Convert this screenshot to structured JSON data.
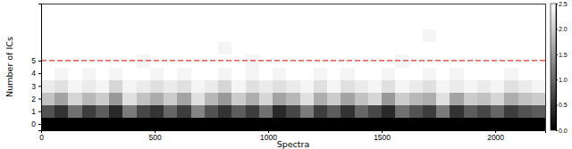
{
  "chart_data": {
    "type": "heatmap",
    "xlabel": "Spectra",
    "ylabel": "Number of ICs",
    "x": [
      0,
      60,
      120,
      180,
      240,
      300,
      360,
      420,
      480,
      540,
      600,
      660,
      720,
      780,
      840,
      900,
      960,
      1020,
      1080,
      1140,
      1200,
      1260,
      1320,
      1380,
      1440,
      1500,
      1560,
      1620,
      1680,
      1740,
      1800,
      1860,
      1920,
      1980,
      2040,
      2100,
      2160
    ],
    "y": [
      0,
      1,
      2,
      3,
      4,
      5,
      6,
      7,
      8,
      9
    ],
    "xlim": [
      0,
      2220
    ],
    "ylim": [
      -0.5,
      9.5
    ],
    "xticks": [
      0,
      500,
      1000,
      1500,
      2000
    ],
    "yticks": [
      0,
      1,
      2,
      3,
      4,
      5
    ],
    "cells": [
      [
        0,
        0,
        0,
        0,
        0,
        0,
        0,
        0,
        0,
        0,
        0,
        0,
        0,
        0,
        0,
        0,
        0,
        0,
        0,
        0,
        0,
        0,
        0,
        0,
        0,
        0,
        0,
        0,
        0,
        0,
        0,
        0,
        0,
        0,
        0,
        0,
        0
      ],
      [
        0.8,
        0.5,
        1.1,
        0.6,
        0.9,
        0.4,
        1.2,
        0.7,
        0.5,
        1.0,
        0.6,
        1.3,
        0.8,
        0.5,
        0.9,
        0.6,
        1.1,
        0.4,
        0.7,
        1.2,
        0.6,
        0.9,
        0.5,
        1.0,
        0.7,
        0.4,
        1.1,
        0.8,
        0.6,
        1.2,
        0.5,
        0.9,
        0.7,
        1.0,
        0.6,
        0.8,
        0.9
      ],
      [
        1.9,
        1.6,
        2.1,
        1.8,
        2.0,
        1.5,
        2.2,
        1.9,
        1.7,
        2.0,
        1.6,
        2.2,
        1.8,
        1.5,
        2.0,
        1.7,
        2.1,
        1.6,
        1.8,
        2.2,
        1.7,
        2.0,
        1.6,
        1.9,
        2.1,
        1.5,
        2.0,
        1.8,
        1.7,
        2.2,
        1.6,
        2.0,
        1.9,
        2.1,
        1.7,
        1.9,
        2.0
      ],
      [
        2.3,
        2.2,
        2.4,
        2.3,
        2.4,
        2.1,
        2.4,
        2.3,
        2.2,
        2.3,
        2.2,
        2.4,
        2.3,
        2.1,
        2.4,
        2.2,
        2.3,
        2.2,
        2.3,
        2.4,
        2.2,
        2.4,
        2.2,
        2.3,
        2.4,
        2.2,
        2.4,
        2.3,
        2.2,
        2.4,
        2.3,
        2.4,
        2.3,
        2.4,
        2.2,
        2.3,
        2.4
      ],
      [
        2.5,
        2.4,
        2.5,
        2.4,
        2.5,
        2.4,
        2.5,
        2.5,
        2.4,
        2.5,
        2.4,
        2.5,
        2.5,
        2.4,
        2.5,
        2.4,
        2.5,
        2.4,
        2.5,
        2.5,
        2.4,
        2.5,
        2.4,
        2.5,
        2.5,
        2.4,
        2.5,
        2.5,
        2.4,
        2.5,
        2.4,
        2.5,
        2.5,
        2.5,
        2.4,
        2.5,
        2.5
      ],
      [
        2.5,
        2.5,
        2.5,
        2.5,
        2.5,
        2.5,
        2.5,
        2.4,
        2.5,
        2.5,
        2.5,
        2.5,
        2.5,
        2.5,
        2.5,
        2.4,
        2.5,
        2.5,
        2.5,
        2.5,
        2.5,
        2.5,
        2.5,
        2.5,
        2.5,
        2.5,
        2.4,
        2.5,
        2.5,
        2.5,
        2.5,
        2.5,
        2.5,
        2.5,
        2.5,
        2.5,
        2.5
      ],
      [
        2.5,
        2.5,
        2.5,
        2.5,
        2.5,
        2.5,
        2.5,
        2.5,
        2.5,
        2.5,
        2.5,
        2.5,
        2.5,
        2.4,
        2.5,
        2.5,
        2.5,
        2.5,
        2.5,
        2.5,
        2.5,
        2.5,
        2.5,
        2.5,
        2.5,
        2.5,
        2.5,
        2.5,
        2.5,
        2.5,
        2.5,
        2.5,
        2.5,
        2.5,
        2.5,
        2.5,
        2.5
      ],
      [
        2.5,
        2.5,
        2.5,
        2.5,
        2.5,
        2.5,
        2.5,
        2.5,
        2.5,
        2.5,
        2.5,
        2.5,
        2.5,
        2.5,
        2.5,
        2.5,
        2.5,
        2.5,
        2.5,
        2.5,
        2.5,
        2.5,
        2.5,
        2.5,
        2.5,
        2.5,
        2.5,
        2.5,
        2.4,
        2.5,
        2.5,
        2.5,
        2.5,
        2.5,
        2.5,
        2.5,
        2.5
      ],
      [
        2.5,
        2.5,
        2.5,
        2.5,
        2.5,
        2.5,
        2.5,
        2.5,
        2.5,
        2.5,
        2.5,
        2.5,
        2.5,
        2.5,
        2.5,
        2.5,
        2.5,
        2.5,
        2.5,
        2.5,
        2.5,
        2.5,
        2.5,
        2.5,
        2.5,
        2.5,
        2.5,
        2.5,
        2.5,
        2.5,
        2.5,
        2.5,
        2.5,
        2.5,
        2.5,
        2.5,
        2.5
      ],
      [
        2.5,
        2.5,
        2.5,
        2.5,
        2.5,
        2.5,
        2.5,
        2.5,
        2.5,
        2.5,
        2.5,
        2.5,
        2.5,
        2.5,
        2.5,
        2.5,
        2.5,
        2.5,
        2.5,
        2.5,
        2.5,
        2.5,
        2.5,
        2.5,
        2.5,
        2.5,
        2.5,
        2.5,
        2.5,
        2.5,
        2.5,
        2.5,
        2.5,
        2.5,
        2.5,
        2.5,
        2.5
      ]
    ],
    "colorbar": {
      "range": [
        0,
        2.5
      ],
      "colors": [
        "#000000",
        "#ffffff"
      ],
      "ticks": [
        {
          "value": 0,
          "label": "0.0"
        },
        {
          "value": 0.5,
          "label": "0.5"
        },
        {
          "value": 1,
          "label": "1.0"
        },
        {
          "value": 1.5,
          "label": "1.5"
        },
        {
          "value": 2,
          "label": "2.0"
        },
        {
          "value": 2.5,
          "label": "2.5"
        }
      ]
    },
    "reference_line": {
      "value": 5,
      "color": "#e8302a",
      "line_style": "dashed"
    }
  }
}
